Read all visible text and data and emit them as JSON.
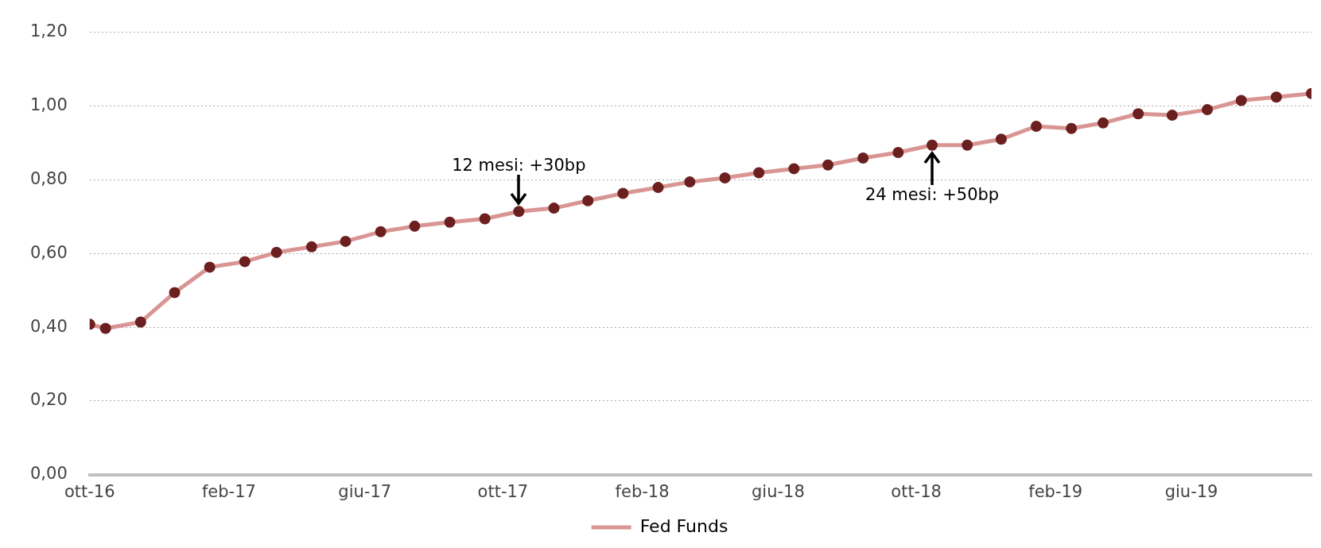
{
  "chart_data": {
    "type": "line",
    "x": [
      "2016-10-01",
      "2016-10-15",
      "2016-11-15",
      "2016-12-15",
      "2017-01-15",
      "2017-02-15",
      "2017-03-15",
      "2017-04-15",
      "2017-05-15",
      "2017-06-15",
      "2017-07-15",
      "2017-08-15",
      "2017-09-15",
      "2017-10-15",
      "2017-11-15",
      "2017-12-15",
      "2018-01-15",
      "2018-02-15",
      "2018-03-15",
      "2018-04-15",
      "2018-05-15",
      "2018-06-15",
      "2018-07-15",
      "2018-08-15",
      "2018-09-15",
      "2018-10-15",
      "2018-11-15",
      "2018-12-15",
      "2019-01-15",
      "2019-02-15",
      "2019-03-15",
      "2019-04-15",
      "2019-05-15",
      "2019-06-15",
      "2019-07-15",
      "2019-08-15",
      "2019-09-15"
    ],
    "series": [
      {
        "name": "Fed Funds",
        "color": "#d99594",
        "colors": [
          "#6b1f1f",
          "#6b1f1f",
          "#6b1f1f",
          "#6b1f1f",
          "#6b1f1f",
          "#6b1f1f",
          "#6b1f1f",
          "#6b1f1f",
          "#6b1f1f",
          "#6b1f1f",
          "#6b1f1f",
          "#6b1f1f",
          "#6b1f1f",
          "#6b1f1f",
          "#6b1f1f",
          "#6b1f1f",
          "#6b1f1f",
          "#6b1f1f",
          "#6b1f1f",
          "#6b1f1f",
          "#6b1f1f",
          "#6b1f1f",
          "#6b1f1f",
          "#6b1f1f",
          "#6b1f1f",
          "#6b1f1f",
          "#6b1f1f",
          "#6b1f1f",
          "#6b1f1f",
          "#6b1f1f",
          "#6b1f1f",
          "#6b1f1f",
          "#6b1f1f",
          "#6b1f1f",
          "#6b1f1f",
          "#6b1f1f",
          "#6b1f1f"
        ],
        "values": [
          0.408,
          0.397,
          0.414,
          0.494,
          0.563,
          0.578,
          0.603,
          0.618,
          0.633,
          0.659,
          0.674,
          0.685,
          0.694,
          0.714,
          0.723,
          0.743,
          0.763,
          0.779,
          0.794,
          0.805,
          0.819,
          0.83,
          0.84,
          0.859,
          0.874,
          0.894,
          0.894,
          0.91,
          0.945,
          0.939,
          0.954,
          0.979,
          0.975,
          0.99,
          1.015,
          1.024,
          1.034
        ]
      }
    ],
    "xlim": [
      "2016-10-01",
      "2019-09-15"
    ],
    "xticks": [
      {
        "value": "2016-10-01",
        "label": "ott-16"
      },
      {
        "value": "2017-02-01",
        "label": "feb-17"
      },
      {
        "value": "2017-06-01",
        "label": "giu-17"
      },
      {
        "value": "2017-10-01",
        "label": "ott-17"
      },
      {
        "value": "2018-02-01",
        "label": "feb-18"
      },
      {
        "value": "2018-06-01",
        "label": "giu-18"
      },
      {
        "value": "2018-10-01",
        "label": "ott-18"
      },
      {
        "value": "2019-02-01",
        "label": "feb-19"
      },
      {
        "value": "2019-06-01",
        "label": "giu-19"
      }
    ],
    "ylim": [
      0,
      1.2
    ],
    "yticks": [
      {
        "value": 0,
        "label": "0,00"
      },
      {
        "value": 0.2,
        "label": "0,20"
      },
      {
        "value": 0.4,
        "label": "0,40"
      },
      {
        "value": 0.6,
        "label": "0,60"
      },
      {
        "value": 0.8,
        "label": "0,80"
      },
      {
        "value": 1.0,
        "label": "1,00"
      },
      {
        "value": 1.2,
        "label": "1,20"
      }
    ],
    "grid": "y",
    "legend": "bottom",
    "marker": "circle",
    "line_style": "solid",
    "annotations": [
      {
        "text": "12 mesi: +30bp",
        "x": "2017-10-15",
        "y": 0.714
      },
      {
        "text": "24 mesi: +50bp",
        "x": "2018-10-15",
        "y": 0.894
      }
    ]
  }
}
